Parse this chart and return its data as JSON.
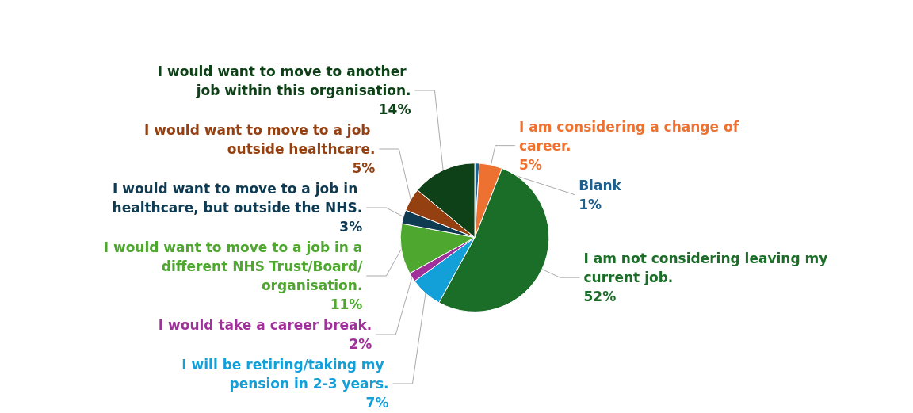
{
  "chart_data": {
    "type": "pie",
    "categories": [
      "Blank",
      "I am considering a change of career.",
      "I am not considering leaving my current job.",
      "I will be retiring/taking my pension in 2-3 years.",
      "I would take a career break.",
      "I would want to move to a job in a different NHS Trust/Board/organisation.",
      "I would want to move to a job in healthcare, but outside the NHS.",
      "I would want to move to a job outside healthcare.",
      "I would want to move to another job within this organisation."
    ],
    "values": [
      1,
      5,
      52,
      7,
      2,
      11,
      3,
      5,
      14
    ],
    "value_labels": [
      "1%",
      "5%",
      "52%",
      "7%",
      "2%",
      "11%",
      "3%",
      "5%",
      "14%"
    ],
    "colors": [
      "#1f5f8b",
      "#ed7232",
      "#1a6e27",
      "#13a0d8",
      "#a0309a",
      "#4ea72e",
      "#0e3a52",
      "#954011",
      "#0f4118"
    ],
    "legend": false
  }
}
